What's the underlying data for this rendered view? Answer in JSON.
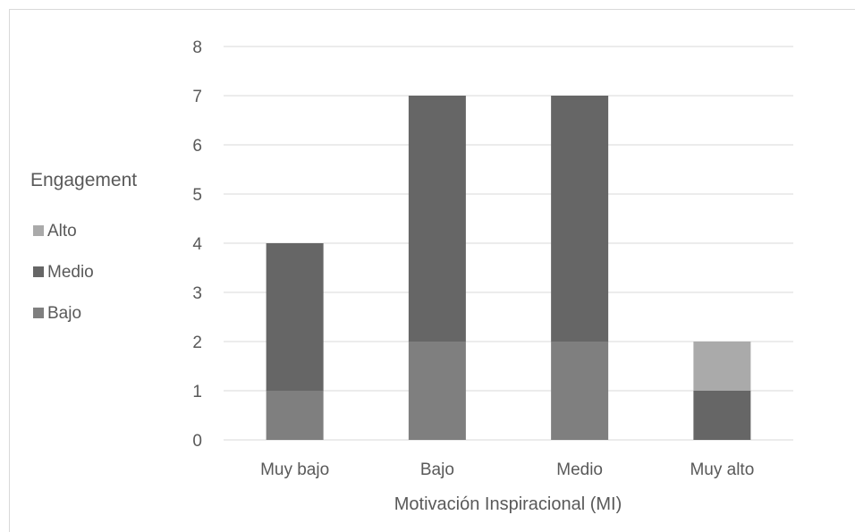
{
  "chart_data": {
    "type": "bar",
    "stacked": true,
    "title": "",
    "xlabel": "Motivación Inspiracional (MI)",
    "ylabel": "",
    "categories": [
      "Muy bajo",
      "Bajo",
      "Medio",
      "Muy alto"
    ],
    "ylim": [
      0,
      8
    ],
    "yticks": [
      "0",
      "1",
      "2",
      "3",
      "4",
      "5",
      "6",
      "7",
      "8"
    ],
    "grid": true,
    "legend": {
      "title": "Engagement",
      "placement": "left"
    },
    "series": [
      {
        "name": "Bajo",
        "values": [
          1,
          2,
          2,
          0
        ],
        "color": "#7f7f7f"
      },
      {
        "name": "Medio",
        "values": [
          3,
          5,
          5,
          1
        ],
        "color": "#666666"
      },
      {
        "name": "Alto",
        "values": [
          0,
          0,
          0,
          1
        ],
        "color": "#aaaaaa"
      }
    ],
    "legend_order": [
      "Alto",
      "Medio",
      "Bajo"
    ]
  }
}
